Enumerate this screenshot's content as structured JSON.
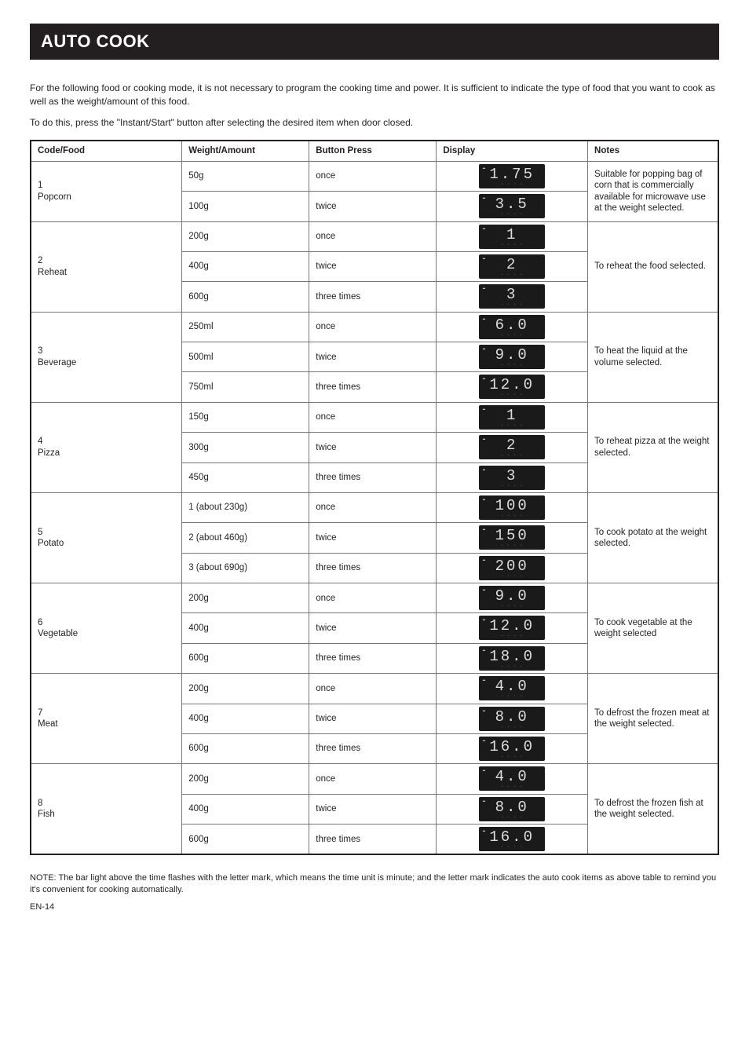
{
  "title": "AUTO COOK",
  "intro": {
    "p1": "For the following food or cooking mode, it is not necessary to program the cooking time and power. It is sufficient to indicate the type of food that you want to cook as well as the weight/amount of this food.",
    "p2": "To do this, press the \"Instant/Start\" button after selecting the desired item when door closed."
  },
  "columns": [
    "Code/Food",
    "Weight/Amount",
    "Button Press",
    "Display",
    "Notes"
  ],
  "rows": [
    {
      "code": "1",
      "food": "Popcorn",
      "weight": "50g",
      "press": "once",
      "lcd": " 1.75",
      "notes": "Suitable for popping bag of corn that is commercially available for microwave use at the weight selected."
    },
    {
      "code": "",
      "food": "",
      "weight": "100g",
      "press": "twice",
      "lcd": " 3.5 ",
      "notes": ""
    },
    {
      "code": "2",
      "food": "Reheat",
      "weight": "200g",
      "press": "once",
      "lcd": "  1  ",
      "notes": "To reheat the food selected."
    },
    {
      "code": "",
      "food": "",
      "weight": "400g",
      "press": "twice",
      "lcd": " 2   ",
      "notes": ""
    },
    {
      "code": "",
      "food": "",
      "weight": "600g",
      "press": "three times",
      "lcd": " 3   ",
      "notes": ""
    },
    {
      "code": "3",
      "food": "Beverage",
      "weight": "250ml",
      "press": "once",
      "lcd": " 6.0 ",
      "notes": "To heat the liquid at the volume selected."
    },
    {
      "code": "",
      "food": "",
      "weight": "500ml",
      "press": "twice",
      "lcd": " 9.0 ",
      "notes": ""
    },
    {
      "code": "",
      "food": "",
      "weight": "750ml",
      "press": "three times",
      "lcd": "12.0 ",
      "notes": ""
    },
    {
      "code": "4",
      "food": "Pizza",
      "weight": "150g",
      "press": "once",
      "lcd": "  1  ",
      "notes": "To reheat pizza at the weight selected."
    },
    {
      "code": "",
      "food": "",
      "weight": "300g",
      "press": "twice",
      "lcd": " 2   ",
      "notes": ""
    },
    {
      "code": "",
      "food": "",
      "weight": "450g",
      "press": "three times",
      "lcd": " 3   ",
      "notes": ""
    },
    {
      "code": "5",
      "food": "Potato",
      "weight": "1 (about 230g)",
      "press": "once",
      "lcd": " 100",
      "notes": "To cook potato at the weight selected."
    },
    {
      "code": "",
      "food": "",
      "weight": "2 (about 460g)",
      "press": "twice",
      "lcd": " 150",
      "notes": ""
    },
    {
      "code": "",
      "food": "",
      "weight": "3 (about 690g)",
      "press": "three times",
      "lcd": " 200",
      "notes": ""
    },
    {
      "code": "6",
      "food": "Vegetable",
      "weight": "200g",
      "press": "once",
      "lcd": " 9.0 ",
      "notes": "To cook vegetable at the weight selected"
    },
    {
      "code": "",
      "food": "",
      "weight": "400g",
      "press": "twice",
      "lcd": "12.0 ",
      "notes": ""
    },
    {
      "code": "",
      "food": "",
      "weight": "600g",
      "press": "three times",
      "lcd": "18.0 ",
      "notes": ""
    },
    {
      "code": "7",
      "food": "Meat",
      "weight": "200g",
      "press": "once",
      "lcd": " 4.0 ",
      "notes": "To defrost the frozen meat at the weight selected."
    },
    {
      "code": "",
      "food": "",
      "weight": "400g",
      "press": "twice",
      "lcd": " 8.0 ",
      "notes": ""
    },
    {
      "code": "",
      "food": "",
      "weight": "600g",
      "press": "three times",
      "lcd": "16.0 ",
      "notes": ""
    },
    {
      "code": "8",
      "food": "Fish",
      "weight": "200g",
      "press": "once",
      "lcd": " 4.0 ",
      "notes": "To defrost the frozen fish at the weight selected."
    },
    {
      "code": "",
      "food": "",
      "weight": "400g",
      "press": "twice",
      "lcd": " 8.0 ",
      "notes": ""
    },
    {
      "code": "",
      "food": "",
      "weight": "600g",
      "press": "three times",
      "lcd": "16.0 ",
      "notes": ""
    }
  ],
  "groupSpans": [
    2,
    3,
    3,
    3,
    3,
    3,
    3,
    3
  ],
  "footer": "NOTE: The bar light above the time flashes with the letter mark, which means the time unit is minute; and the letter mark indicates the auto cook items as above table to remind you it's convenient for cooking automatically.",
  "pageNum": "EN-14"
}
